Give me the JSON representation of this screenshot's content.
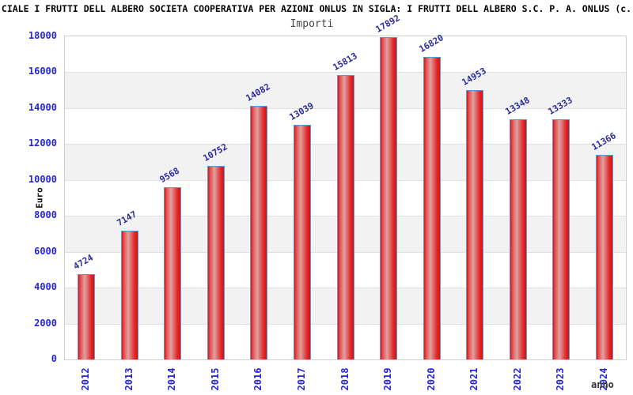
{
  "header": {
    "title": "CIALE I FRUTTI DELL ALBERO SOCIETA COOPERATIVA PER AZIONI ONLUS IN SIGLA: I FRUTTI DELL ALBERO S.C. P. A. ONLUS (c.",
    "subtitle": "Importi"
  },
  "chart_data": {
    "type": "bar",
    "title": "Importi",
    "categories": [
      "2012",
      "2013",
      "2014",
      "2015",
      "2016",
      "2017",
      "2018",
      "2019",
      "2020",
      "2021",
      "2022",
      "2023",
      "2024"
    ],
    "values": [
      4724,
      7147,
      9568,
      10752,
      14082,
      13039,
      15813,
      17892,
      16820,
      14953,
      13348,
      13333,
      11366
    ],
    "xlabel": "anno",
    "ylabel": "Euro",
    "ylim": [
      0,
      18000
    ],
    "yticks": [
      0,
      2000,
      4000,
      6000,
      8000,
      10000,
      12000,
      14000,
      16000,
      18000
    ],
    "legend_position": "none",
    "grid": "alternating horizontal bands every 2000",
    "value_labels_rotation_deg": -30,
    "xtick_rotation_deg": -90
  },
  "colors": {
    "bar_fill_edge": "#e01414",
    "bar_fill_highlight": "#dda2a2",
    "bar_border": "#5b9bd5",
    "tick_label": "#2525dd",
    "value_label": "#2b2b9e",
    "band_white": "#ffffff",
    "band_gray": "#f2f2f2",
    "gridline": "#e0e0e0",
    "plot_border": "#cfcfcf",
    "title_color": "#000000",
    "subtitle_color": "#444444",
    "axis_title_color": "#222222"
  }
}
